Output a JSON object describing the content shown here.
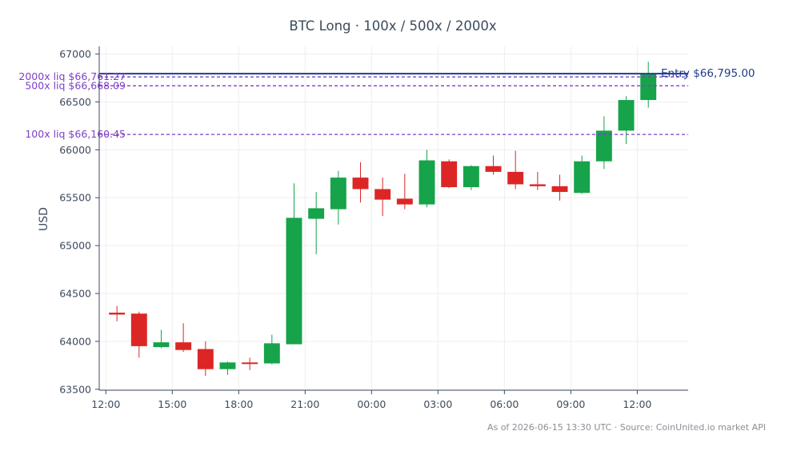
{
  "chart_data": {
    "type": "candlestick",
    "title": "BTC Long · 100x / 500x / 2000x",
    "ylabel": "USD",
    "xlabel": "",
    "ylim": [
      63490,
      67080
    ],
    "yticks": [
      63500,
      64000,
      64500,
      65000,
      65500,
      66000,
      66500,
      67000
    ],
    "yticklabels": [
      "63500",
      "64000",
      "64500",
      "65000",
      "65500",
      "66000",
      "66500",
      "67000"
    ],
    "x_index_range": [
      -0.8,
      25.8
    ],
    "xticks": [
      {
        "index": -0.5,
        "label": "12:00"
      },
      {
        "index": 2.5,
        "label": "15:00"
      },
      {
        "index": 5.5,
        "label": "18:00"
      },
      {
        "index": 8.5,
        "label": "21:00"
      },
      {
        "index": 11.5,
        "label": "00:00"
      },
      {
        "index": 14.5,
        "label": "03:00"
      },
      {
        "index": 17.5,
        "label": "06:00"
      },
      {
        "index": 20.5,
        "label": "09:00"
      },
      {
        "index": 23.5,
        "label": "12:00"
      }
    ],
    "grid": true,
    "colors": {
      "up": "#16a34a",
      "down": "#dc2626",
      "entry": "#1f3c8f",
      "liq": "#7e3fc8",
      "axis": "#3d4b5c",
      "grid": "#eeeeee"
    },
    "candles": [
      {
        "o": 64300,
        "h": 64370,
        "l": 64210,
        "c": 64280
      },
      {
        "o": 64290,
        "h": 64310,
        "l": 63830,
        "c": 63950
      },
      {
        "o": 63940,
        "h": 64120,
        "l": 63930,
        "c": 63990
      },
      {
        "o": 63990,
        "h": 64190,
        "l": 63890,
        "c": 63910
      },
      {
        "o": 63920,
        "h": 64000,
        "l": 63640,
        "c": 63710
      },
      {
        "o": 63710,
        "h": 63790,
        "l": 63650,
        "c": 63780
      },
      {
        "o": 63780,
        "h": 63830,
        "l": 63700,
        "c": 63770
      },
      {
        "o": 63770,
        "h": 64070,
        "l": 63760,
        "c": 63980
      },
      {
        "o": 63970,
        "h": 65650,
        "l": 63970,
        "c": 65290
      },
      {
        "o": 65280,
        "h": 65560,
        "l": 64910,
        "c": 65390
      },
      {
        "o": 65380,
        "h": 65780,
        "l": 65220,
        "c": 65710
      },
      {
        "o": 65710,
        "h": 65870,
        "l": 65450,
        "c": 65590
      },
      {
        "o": 65590,
        "h": 65710,
        "l": 65310,
        "c": 65480
      },
      {
        "o": 65490,
        "h": 65750,
        "l": 65380,
        "c": 65430
      },
      {
        "o": 65430,
        "h": 66000,
        "l": 65400,
        "c": 65890
      },
      {
        "o": 65880,
        "h": 65900,
        "l": 65600,
        "c": 65610
      },
      {
        "o": 65610,
        "h": 65840,
        "l": 65580,
        "c": 65830
      },
      {
        "o": 65830,
        "h": 65940,
        "l": 65740,
        "c": 65770
      },
      {
        "o": 65770,
        "h": 65990,
        "l": 65590,
        "c": 65640
      },
      {
        "o": 65640,
        "h": 65770,
        "l": 65580,
        "c": 65620
      },
      {
        "o": 65620,
        "h": 65740,
        "l": 65470,
        "c": 65560
      },
      {
        "o": 65550,
        "h": 65940,
        "l": 65540,
        "c": 65880
      },
      {
        "o": 65880,
        "h": 66350,
        "l": 65800,
        "c": 66200
      },
      {
        "o": 66200,
        "h": 66560,
        "l": 66060,
        "c": 66520
      },
      {
        "o": 66520,
        "h": 66920,
        "l": 66440,
        "c": 66795
      }
    ],
    "reference_lines": [
      {
        "value": 66795.0,
        "label": "Entry $66,795.00",
        "kind": "entry"
      },
      {
        "value": 66761.27,
        "label": "2000x liq $66,761.27",
        "kind": "liq"
      },
      {
        "value": 66668.09,
        "label": "500x liq $66,668.09",
        "kind": "liq"
      },
      {
        "value": 66160.45,
        "label": "100x liq $66,160.45",
        "kind": "liq"
      }
    ]
  },
  "footnote": "As of 2026-06-15 13:30 UTC · Source: CoinUnited.io market API"
}
